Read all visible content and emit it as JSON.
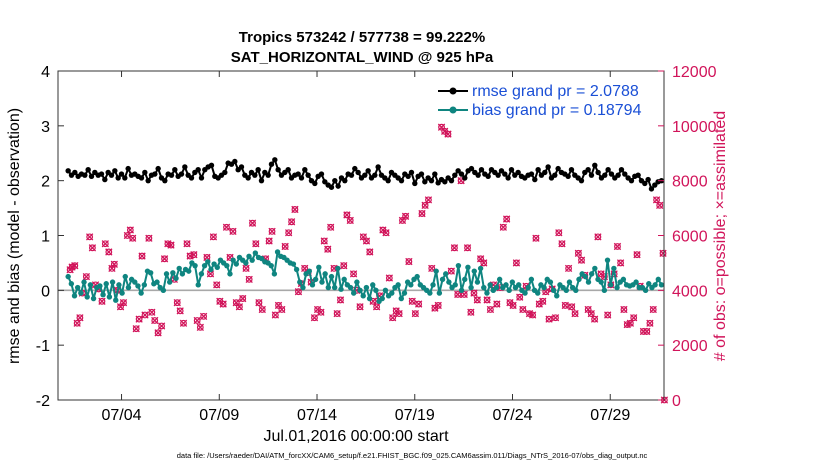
{
  "colors": {
    "rmse": "#000000",
    "bias": "#0f8580",
    "obs": "#d1145a",
    "legend_text": "#1a4fd6",
    "zero_line": "#a8a8a8"
  },
  "chart_data": {
    "type": "line",
    "title": "Tropics 573242 / 577738 = 99.222%",
    "subtitle": "SAT_HORIZONTAL_WIND @ 925 hPa",
    "xlabel": "Jul.01,2016 00:00:00 start",
    "ylabel_left": "rmse and bias (model - observation)",
    "ylabel_right": "# of obs: o=possible; ×=assimilated",
    "xlim": [
      0.5,
      31.5
    ],
    "ylim_left": [
      -2,
      4
    ],
    "ylim_right": [
      0,
      12000
    ],
    "x_ticks": [
      3.75,
      8.75,
      13.75,
      18.75,
      23.75,
      28.75
    ],
    "x_tick_labels": [
      "07/04",
      "07/09",
      "07/14",
      "07/19",
      "07/24",
      "07/29"
    ],
    "y_ticks_left": [
      "4",
      "3",
      "2",
      "1",
      "0",
      "-1",
      "-2"
    ],
    "y_ticks_right": [
      "12000",
      "10000",
      "8000",
      "6000",
      "4000",
      "2000",
      "0"
    ],
    "legend": [
      "rmse grand pr = 2.0788",
      "bias grand pr = 0.18794"
    ],
    "rmse": [
      2.18,
      2.1,
      2.15,
      2.08,
      2.12,
      2.1,
      2.2,
      2.08,
      2.15,
      2.1,
      2.12,
      2.02,
      2.15,
      2.1,
      2.18,
      2.05,
      2.12,
      2.05,
      2.22,
      2.1,
      2.12,
      2.08,
      2.05,
      2.15,
      2.0,
      2.1,
      2.12,
      2.22,
      2.05,
      2.0,
      2.12,
      2.1,
      2.2,
      2.08,
      2.12,
      2.25,
      2.1,
      2.05,
      2.15,
      2.2,
      2.05,
      2.2,
      2.25,
      2.28,
      2.08,
      2.05,
      2.1,
      2.15,
      2.32,
      2.3,
      2.35,
      2.2,
      2.25,
      2.1,
      2.05,
      2.15,
      2.1,
      2.2,
      2.0,
      2.15,
      2.1,
      2.3,
      2.38,
      2.2,
      2.1,
      2.15,
      2.2,
      2.05,
      2.1,
      2.12,
      2.05,
      2.2,
      2.1,
      2.0,
      1.95,
      2.08,
      2.12,
      1.98,
      1.92,
      1.88,
      2.0,
      1.9,
      2.05,
      2.0,
      2.12,
      2.1,
      2.22,
      2.15,
      2.05,
      2.1,
      2.18,
      2.05,
      2.1,
      2.25,
      2.1,
      2.05,
      2.0,
      2.15,
      2.1,
      2.05,
      2.0,
      2.12,
      2.08,
      2.15,
      1.95,
      2.08,
      2.12,
      1.98,
      2.05,
      2.0,
      2.12,
      1.96,
      2.02,
      1.98,
      2.05,
      2.0,
      2.1,
      2.18,
      2.12,
      2.05,
      2.18,
      2.22,
      2.15,
      2.1,
      2.2,
      2.12,
      2.08,
      2.2,
      2.15,
      2.1,
      2.18,
      2.12,
      2.05,
      2.2,
      2.1,
      2.15,
      2.08,
      2.05,
      2.1,
      2.12,
      2.02,
      2.2,
      2.1,
      2.15,
      2.25,
      2.05,
      2.1,
      2.22,
      2.15,
      2.12,
      2.08,
      2.2,
      2.1,
      2.05,
      2.0,
      2.15,
      2.2,
      2.1,
      2.28,
      2.15,
      2.05,
      2.1,
      2.2,
      2.12,
      2.05,
      2.1,
      2.2,
      2.12,
      2.05,
      2.0,
      2.08,
      2.1,
      2.0,
      1.95,
      2.02,
      1.85,
      1.92,
      1.98,
      2.0
    ],
    "bias": [
      0.25,
      0.12,
      -0.1,
      0.05,
      -0.05,
      0.15,
      -0.12,
      0.1,
      -0.15,
      0.05,
      0.08,
      -0.08,
      0.12,
      -0.12,
      0.15,
      -0.18,
      0.1,
      -0.05,
      0.25,
      0.05,
      0.2,
      0.15,
      0.08,
      -0.05,
      0.1,
      0.35,
      0.32,
      0.12,
      0.15,
      0.05,
      0.0,
      0.3,
      0.15,
      0.32,
      0.22,
      0.4,
      0.3,
      0.38,
      0.35,
      0.5,
      0.45,
      0.1,
      0.3,
      0.45,
      0.52,
      0.38,
      0.48,
      0.42,
      0.55,
      0.5,
      0.45,
      0.3,
      0.55,
      0.48,
      0.6,
      0.55,
      0.5,
      0.62,
      0.55,
      0.68,
      0.6,
      0.58,
      0.52,
      0.5,
      0.45,
      0.3,
      0.7,
      0.62,
      0.6,
      0.55,
      0.5,
      0.48,
      0.38,
      0.15,
      0.05,
      0.3,
      0.35,
      0.1,
      0.2,
      0.42,
      0.15,
      0.3,
      0.05,
      0.25,
      0.05,
      0.4,
      0.02,
      0.2,
      0.1,
      0.05,
      -0.05,
      0.15,
      0.0,
      -0.1,
      0.05,
      -0.15,
      0.1,
      0.0,
      -0.2,
      -0.15,
      0.0,
      -0.1,
      -0.05,
      0.05,
      0.1,
      -0.15,
      -0.05,
      0.15,
      0.1,
      0.2,
      0.25,
      0.1,
      0.05,
      0.0,
      -0.05,
      0.1,
      0.35,
      -0.05,
      0.2,
      0.3,
      0.15,
      0.05,
      0.1,
      0.45,
      0.0,
      0.2,
      0.42,
      0.05,
      0.35,
      0.15,
      0.4,
      0.05,
      -0.05,
      0.1,
      0.0,
      0.05,
      0.2,
      0.05,
      0.1,
      0.0,
      0.15,
      0.05,
      0.1,
      0.0,
      -0.05,
      0.05,
      0.2,
      0.0,
      -0.05,
      0.1,
      0.05,
      0.2,
      0.15,
      0.0,
      -0.1,
      0.1,
      0.05,
      0.0,
      0.15,
      0.05,
      0.0,
      0.2,
      0.3,
      0.25,
      0.15,
      0.3,
      0.4,
      0.2,
      0.15,
      0.0,
      0.55,
      0.1,
      0.4,
      0.05,
      0.15,
      0.2,
      0.1,
      0.08,
      0.1,
      0.15,
      0.05,
      0.05,
      0.0,
      0.12,
      0.05,
      0.1,
      0.2,
      0.1
    ],
    "obs_assimilated": [
      [
        1.12,
        4750
      ],
      [
        1.22,
        4850
      ],
      [
        1.36,
        4900
      ],
      [
        1.48,
        2800
      ],
      [
        1.62,
        3000
      ],
      [
        1.75,
        3900
      ],
      [
        1.95,
        4500
      ],
      [
        2.12,
        5950
      ],
      [
        2.26,
        5550
      ],
      [
        2.42,
        4200
      ],
      [
        2.58,
        4050
      ],
      [
        2.75,
        3600
      ],
      [
        2.92,
        5700
      ],
      [
        3.1,
        5400
      ],
      [
        3.26,
        4800
      ],
      [
        3.38,
        4950
      ],
      [
        3.55,
        4000
      ],
      [
        3.7,
        3400
      ],
      [
        3.85,
        3550
      ],
      [
        4.05,
        6000
      ],
      [
        4.2,
        6200
      ],
      [
        4.32,
        5900
      ],
      [
        4.5,
        2600
      ],
      [
        4.65,
        2950
      ],
      [
        4.8,
        5250
      ],
      [
        4.95,
        3100
      ],
      [
        5.15,
        5900
      ],
      [
        5.3,
        3200
      ],
      [
        5.45,
        2900
      ],
      [
        5.62,
        2450
      ],
      [
        5.8,
        2700
      ],
      [
        5.95,
        5150
      ],
      [
        6.12,
        5700
      ],
      [
        6.28,
        5650
      ],
      [
        6.45,
        4400
      ],
      [
        6.6,
        3550
      ],
      [
        6.75,
        3250
      ],
      [
        6.92,
        2800
      ],
      [
        7.1,
        5700
      ],
      [
        7.26,
        5250
      ],
      [
        7.45,
        5300
      ],
      [
        7.62,
        2900
      ],
      [
        7.78,
        2650
      ],
      [
        7.95,
        3050
      ],
      [
        8.12,
        5200
      ],
      [
        8.3,
        4600
      ],
      [
        8.45,
        5950
      ],
      [
        8.62,
        4200
      ],
      [
        8.78,
        3600
      ],
      [
        8.95,
        3500
      ],
      [
        9.12,
        6300
      ],
      [
        9.3,
        5200
      ],
      [
        9.45,
        6150
      ],
      [
        9.62,
        3550
      ],
      [
        9.78,
        3400
      ],
      [
        9.95,
        3700
      ],
      [
        10.12,
        4800
      ],
      [
        10.28,
        4400
      ],
      [
        10.45,
        6450
      ],
      [
        10.62,
        5700
      ],
      [
        10.78,
        3550
      ],
      [
        10.95,
        3300
      ],
      [
        11.12,
        5150
      ],
      [
        11.3,
        5800
      ],
      [
        11.45,
        6150
      ],
      [
        11.62,
        3100
      ],
      [
        11.78,
        3450
      ],
      [
        11.95,
        3300
      ],
      [
        12.12,
        5600
      ],
      [
        12.3,
        6100
      ],
      [
        12.45,
        6500
      ],
      [
        12.62,
        6950
      ],
      [
        12.8,
        3950
      ],
      [
        12.95,
        4250
      ],
      [
        13.12,
        4800
      ],
      [
        13.3,
        4650
      ],
      [
        13.45,
        4300
      ],
      [
        13.62,
        3000
      ],
      [
        13.78,
        3300
      ],
      [
        13.95,
        3200
      ],
      [
        14.12,
        5800
      ],
      [
        14.3,
        5500
      ],
      [
        14.45,
        6300
      ],
      [
        14.62,
        4800
      ],
      [
        14.78,
        3150
      ],
      [
        14.95,
        3650
      ],
      [
        15.12,
        4900
      ],
      [
        15.28,
        6750
      ],
      [
        15.45,
        6550
      ],
      [
        15.62,
        4600
      ],
      [
        15.78,
        4000
      ],
      [
        15.95,
        3400
      ],
      [
        16.12,
        5950
      ],
      [
        16.28,
        5800
      ],
      [
        16.45,
        5400
      ],
      [
        16.62,
        3600
      ],
      [
        16.8,
        3400
      ],
      [
        16.95,
        3800
      ],
      [
        17.12,
        6200
      ],
      [
        17.28,
        6100
      ],
      [
        17.45,
        4450
      ],
      [
        17.62,
        3000
      ],
      [
        17.8,
        3250
      ],
      [
        17.95,
        3150
      ],
      [
        18.12,
        6550
      ],
      [
        18.28,
        6700
      ],
      [
        18.45,
        5050
      ],
      [
        18.62,
        3600
      ],
      [
        18.78,
        3150
      ],
      [
        18.95,
        3500
      ],
      [
        19.12,
        6800
      ],
      [
        19.28,
        7100
      ],
      [
        19.45,
        7300
      ],
      [
        19.62,
        4800
      ],
      [
        19.78,
        3350
      ],
      [
        19.95,
        3450
      ],
      [
        20.12,
        9950
      ],
      [
        20.28,
        9800
      ],
      [
        20.45,
        9700
      ],
      [
        20.62,
        4700
      ],
      [
        20.78,
        5550
      ],
      [
        20.95,
        3850
      ],
      [
        21.12,
        8000
      ],
      [
        21.28,
        3850
      ],
      [
        21.45,
        5550
      ],
      [
        21.62,
        3200
      ],
      [
        21.78,
        3900
      ],
      [
        21.95,
        3650
      ],
      [
        22.12,
        5150
      ],
      [
        22.28,
        5000
      ],
      [
        22.45,
        3650
      ],
      [
        22.62,
        3300
      ],
      [
        22.78,
        4200
      ],
      [
        22.95,
        3500
      ],
      [
        23.12,
        4100
      ],
      [
        23.28,
        6300
      ],
      [
        23.45,
        6600
      ],
      [
        23.62,
        3550
      ],
      [
        23.78,
        3450
      ],
      [
        23.95,
        5000
      ],
      [
        24.12,
        3750
      ],
      [
        24.28,
        3300
      ],
      [
        24.45,
        4150
      ],
      [
        24.62,
        3150
      ],
      [
        24.78,
        3100
      ],
      [
        24.95,
        5900
      ],
      [
        25.12,
        3500
      ],
      [
        25.3,
        3600
      ],
      [
        25.45,
        3950
      ],
      [
        25.62,
        2950
      ],
      [
        25.78,
        4050
      ],
      [
        25.95,
        3000
      ],
      [
        26.12,
        6100
      ],
      [
        26.28,
        5700
      ],
      [
        26.45,
        3450
      ],
      [
        26.62,
        4800
      ],
      [
        26.78,
        3400
      ],
      [
        26.95,
        3150
      ],
      [
        27.12,
        5350
      ],
      [
        27.28,
        5100
      ],
      [
        27.45,
        4550
      ],
      [
        27.62,
        3300
      ],
      [
        27.78,
        3150
      ],
      [
        27.95,
        2950
      ],
      [
        28.12,
        5950
      ],
      [
        28.28,
        4600
      ],
      [
        28.45,
        4500
      ],
      [
        28.62,
        3100
      ],
      [
        28.78,
        4200
      ],
      [
        28.95,
        4600
      ],
      [
        29.12,
        5600
      ],
      [
        29.28,
        5000
      ],
      [
        29.45,
        3300
      ],
      [
        29.62,
        2750
      ],
      [
        29.78,
        2800
      ],
      [
        29.95,
        3000
      ],
      [
        30.12,
        5300
      ],
      [
        30.28,
        4150
      ],
      [
        30.45,
        2500
      ],
      [
        30.62,
        2500
      ],
      [
        30.78,
        2800
      ],
      [
        30.95,
        3300
      ],
      [
        31.12,
        7300
      ],
      [
        31.28,
        7100
      ],
      [
        31.45,
        5350
      ],
      [
        31.52,
        0
      ]
    ],
    "footnote": "data file: /Users/raeder/DAI/ATM_forcXX/CAM6_setup/f.e21.FHIST_BGC.f09_025.CAM6assim.011/Diags_NTrS_2016-07/obs_diag_output.nc"
  }
}
